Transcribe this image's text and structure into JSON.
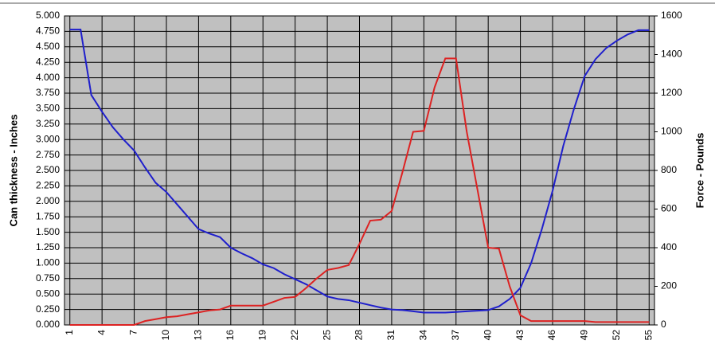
{
  "chart_data": {
    "type": "line",
    "y_label": "Can thickness - Inches",
    "y2_label": "Force - Pounds",
    "x": [
      1,
      2,
      3,
      4,
      5,
      6,
      7,
      8,
      9,
      10,
      11,
      12,
      13,
      14,
      15,
      16,
      17,
      18,
      19,
      20,
      21,
      22,
      23,
      24,
      25,
      26,
      27,
      28,
      29,
      30,
      31,
      32,
      33,
      34,
      35,
      36,
      37,
      38,
      39,
      40,
      41,
      42,
      43,
      44,
      45,
      46,
      47,
      48,
      49,
      50,
      51,
      52,
      53,
      54,
      55
    ],
    "xlim": [
      0.5,
      55.5
    ],
    "xticks": [
      1,
      4,
      7,
      10,
      13,
      16,
      19,
      22,
      25,
      28,
      31,
      34,
      37,
      40,
      43,
      46,
      49,
      52,
      55
    ],
    "ylim": [
      0,
      5
    ],
    "yticks": [
      {
        "value": 0,
        "label": "0.000"
      },
      {
        "value": 0.25,
        "label": "0.250"
      },
      {
        "value": 0.5,
        "label": "0.500"
      },
      {
        "value": 0.75,
        "label": "0.750"
      },
      {
        "value": 1,
        "label": "1.000"
      },
      {
        "value": 1.25,
        "label": "1.250"
      },
      {
        "value": 1.5,
        "label": "1.500"
      },
      {
        "value": 1.75,
        "label": "1.750"
      },
      {
        "value": 2,
        "label": "2.000"
      },
      {
        "value": 2.25,
        "label": "2.250"
      },
      {
        "value": 2.5,
        "label": "2.500"
      },
      {
        "value": 2.75,
        "label": "2.750"
      },
      {
        "value": 3,
        "label": "3.000"
      },
      {
        "value": 3.25,
        "label": "3.250"
      },
      {
        "value": 3.5,
        "label": "3.500"
      },
      {
        "value": 3.75,
        "label": "3.750"
      },
      {
        "value": 4,
        "label": "4.000"
      },
      {
        "value": 4.25,
        "label": "4.250"
      },
      {
        "value": 4.5,
        "label": "4.500"
      },
      {
        "value": 4.75,
        "label": "4.750"
      },
      {
        "value": 5,
        "label": "5.000"
      }
    ],
    "y2lim": [
      0,
      1600
    ],
    "y2ticks": [
      0,
      200,
      400,
      600,
      800,
      1000,
      1200,
      1400,
      1600
    ],
    "grid": true,
    "background": "#c0c0c0",
    "series": [
      {
        "color": "#1f1fcc",
        "values": [
          4.78,
          4.78,
          3.72,
          3.45,
          3.2,
          3.0,
          2.82,
          2.55,
          2.3,
          2.15,
          1.95,
          1.75,
          1.55,
          1.48,
          1.42,
          1.25,
          1.16,
          1.08,
          0.98,
          0.92,
          0.82,
          0.74,
          0.66,
          0.56,
          0.46,
          0.42,
          0.4,
          0.36,
          0.32,
          0.28,
          0.25,
          0.24,
          0.22,
          0.2,
          0.2,
          0.2,
          0.21,
          0.22,
          0.23,
          0.24,
          0.3,
          0.42,
          0.6,
          1.0,
          1.55,
          2.17,
          2.9,
          3.5,
          4.03,
          4.3,
          4.48,
          4.6,
          4.7,
          4.77,
          4.77
        ]
      },
      {
        "color": "#dd2222",
        "axis": "y2",
        "values": [
          0,
          0,
          0,
          0,
          0,
          0,
          0,
          20,
          30,
          40,
          45,
          55,
          65,
          75,
          80,
          100,
          100,
          100,
          100,
          120,
          140,
          145,
          190,
          240,
          285,
          295,
          310,
          420,
          540,
          545,
          590,
          790,
          1000,
          1005,
          1230,
          1380,
          1380,
          1000,
          700,
          400,
          395,
          200,
          50,
          20,
          20,
          20,
          20,
          20,
          20,
          15,
          15,
          15,
          15,
          15,
          15
        ]
      }
    ]
  }
}
